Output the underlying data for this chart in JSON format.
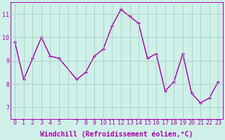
{
  "xlabel": "Windchill (Refroidissement éolien,°C)",
  "background_color": "#cff0e8",
  "line_color": "#aa00aa",
  "marker": "+",
  "xlim": [
    -0.5,
    23.5
  ],
  "ylim": [
    6.5,
    11.5
  ],
  "yticks": [
    7,
    8,
    9,
    10,
    11
  ],
  "xtick_labels": [
    "0",
    "1",
    "2",
    "3",
    "4",
    "5",
    "",
    "7",
    "8",
    "9",
    "10",
    "11",
    "12",
    "13",
    "14",
    "15",
    "16",
    "17",
    "18",
    "19",
    "20",
    "21",
    "22",
    "23"
  ],
  "xtick_positions": [
    0,
    1,
    2,
    3,
    4,
    5,
    6,
    7,
    8,
    9,
    10,
    11,
    12,
    13,
    14,
    15,
    16,
    17,
    18,
    19,
    20,
    21,
    22,
    23
  ],
  "series2_x": [
    0,
    1,
    2,
    3,
    4,
    5,
    7,
    8,
    9,
    10,
    11,
    12,
    13,
    14,
    15,
    16,
    17,
    18,
    19,
    20,
    21,
    22,
    23
  ],
  "series2_y": [
    9.8,
    8.2,
    9.1,
    10.0,
    9.2,
    9.1,
    8.2,
    8.5,
    9.2,
    9.5,
    10.5,
    11.2,
    10.9,
    10.6,
    9.1,
    9.3,
    7.7,
    8.1,
    9.3,
    7.6,
    7.2,
    7.4,
    8.1
  ],
  "grid_color": "#99ccbb",
  "tick_fontsize": 6,
  "label_fontsize": 7,
  "figsize": [
    3.2,
    2.0
  ],
  "dpi": 100
}
